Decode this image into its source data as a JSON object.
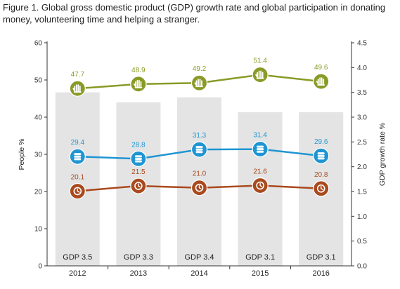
{
  "title": "Figure 1. Global gross domestic product (GDP) growth rate and global participation in donating money, volunteering time and helping a stranger.",
  "chart_data": {
    "type": "bar+line",
    "categories": [
      "2012",
      "2013",
      "2014",
      "2015",
      "2016"
    ],
    "bars": {
      "axis": "right",
      "values": [
        3.5,
        3.3,
        3.4,
        3.1,
        3.1
      ],
      "labels": [
        "GDP 3.5",
        "GDP 3.3",
        "GDP 3.4",
        "GDP 3.1",
        "GDP 3.1"
      ],
      "color": "#e4e4e4"
    },
    "series": [
      {
        "values": [
          47.7,
          48.9,
          49.2,
          51.4,
          49.6
        ],
        "labels": [
          "47.7",
          "48.9",
          "49.2",
          "51.4",
          "49.6"
        ],
        "color": "#8a9a26",
        "icon": "helping-hand-icon"
      },
      {
        "values": [
          29.4,
          28.8,
          31.3,
          31.4,
          29.6
        ],
        "labels": [
          "29.4",
          "28.8",
          "31.3",
          "31.4",
          "29.6"
        ],
        "color": "#1f95d2",
        "icon": "coin-stack-icon"
      },
      {
        "values": [
          20.1,
          21.5,
          21.0,
          21.6,
          20.8
        ],
        "labels": [
          "20.1",
          "21.5",
          "21.0",
          "21.6",
          "20.8"
        ],
        "color": "#a94a1e",
        "icon": "clock-icon"
      }
    ],
    "left_axis": {
      "label": "People %",
      "ylim": [
        0,
        60
      ],
      "ticks": [
        "0",
        "10",
        "20",
        "30",
        "40",
        "50",
        "60"
      ]
    },
    "right_axis": {
      "label": "GDP growth rate %",
      "ylim": [
        0,
        4.5
      ],
      "ticks": [
        "0.0",
        "0.5",
        "1.0",
        "1.5",
        "2.0",
        "2.5",
        "3.0",
        "3.5",
        "4.0",
        "4.5"
      ]
    },
    "grid": false
  }
}
